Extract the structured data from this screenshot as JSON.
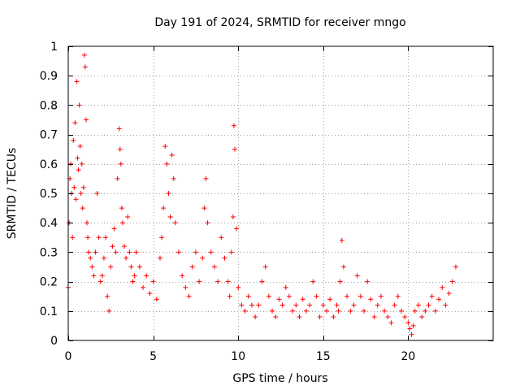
{
  "chart_data": {
    "type": "scatter",
    "title": "Day 191 of 2024, SRMTID for receiver mngo",
    "xlabel": "GPS time / hours",
    "ylabel": "SRMTID / TECUs",
    "xlim": [
      0,
      25
    ],
    "ylim": [
      0,
      1
    ],
    "xticks": [
      0,
      5,
      10,
      15,
      20
    ],
    "yticks": [
      0,
      0.1,
      0.2,
      0.3,
      0.4,
      0.5,
      0.6,
      0.7,
      0.8,
      0.9,
      1
    ],
    "xtick_labels": [
      "0",
      "5",
      "10",
      "15",
      "20"
    ],
    "ytick_labels": [
      "0",
      "0.1",
      "0.2",
      "0.3",
      "0.4",
      "0.5",
      "0.6",
      "0.7",
      "0.8",
      "0.9",
      "1"
    ],
    "grid": true,
    "marker": "+",
    "series": [
      {
        "name": "SRMTID",
        "color": "#ff0000",
        "x": [
          0.0,
          0.05,
          0.1,
          0.15,
          0.2,
          0.25,
          0.3,
          0.35,
          0.4,
          0.45,
          0.5,
          0.55,
          0.6,
          0.65,
          0.7,
          0.75,
          0.8,
          0.85,
          0.9,
          0.95,
          1.0,
          1.05,
          1.1,
          1.15,
          1.2,
          1.3,
          1.4,
          1.5,
          1.6,
          1.7,
          1.8,
          1.9,
          2.0,
          2.1,
          2.2,
          2.3,
          2.4,
          2.5,
          2.6,
          2.7,
          2.8,
          2.9,
          3.0,
          3.05,
          3.1,
          3.15,
          3.2,
          3.3,
          3.4,
          3.5,
          3.6,
          3.7,
          3.8,
          3.9,
          4.0,
          4.2,
          4.4,
          4.6,
          4.8,
          5.0,
          5.2,
          5.4,
          5.5,
          5.6,
          5.7,
          5.8,
          5.9,
          6.0,
          6.1,
          6.2,
          6.3,
          6.5,
          6.7,
          6.9,
          7.1,
          7.3,
          7.5,
          7.7,
          7.9,
          8.0,
          8.1,
          8.2,
          8.4,
          8.6,
          8.8,
          9.0,
          9.2,
          9.4,
          9.5,
          9.6,
          9.7,
          9.75,
          9.8,
          9.9,
          10.0,
          10.2,
          10.4,
          10.6,
          10.8,
          11.0,
          11.2,
          11.4,
          11.6,
          11.8,
          12.0,
          12.2,
          12.4,
          12.6,
          12.8,
          13.0,
          13.2,
          13.4,
          13.6,
          13.8,
          14.0,
          14.2,
          14.4,
          14.6,
          14.8,
          15.0,
          15.2,
          15.4,
          15.6,
          15.8,
          15.9,
          16.0,
          16.1,
          16.2,
          16.4,
          16.6,
          16.8,
          17.0,
          17.2,
          17.4,
          17.6,
          17.8,
          18.0,
          18.2,
          18.4,
          18.6,
          18.8,
          19.0,
          19.2,
          19.4,
          19.6,
          19.8,
          20.0,
          20.1,
          20.2,
          20.3,
          20.4,
          20.6,
          20.8,
          21.0,
          21.2,
          21.4,
          21.6,
          21.8,
          22.0,
          22.2,
          22.4,
          22.6,
          22.8
        ],
        "y": [
          0.18,
          0.4,
          0.55,
          0.6,
          0.5,
          0.35,
          0.68,
          0.52,
          0.74,
          0.48,
          0.88,
          0.62,
          0.58,
          0.8,
          0.66,
          0.5,
          0.6,
          0.45,
          0.52,
          0.97,
          0.93,
          0.75,
          0.4,
          0.35,
          0.3,
          0.28,
          0.25,
          0.22,
          0.3,
          0.5,
          0.35,
          0.2,
          0.22,
          0.28,
          0.35,
          0.15,
          0.1,
          0.25,
          0.32,
          0.38,
          0.3,
          0.55,
          0.72,
          0.65,
          0.6,
          0.45,
          0.4,
          0.32,
          0.28,
          0.42,
          0.3,
          0.25,
          0.2,
          0.22,
          0.3,
          0.25,
          0.18,
          0.22,
          0.16,
          0.2,
          0.14,
          0.28,
          0.35,
          0.45,
          0.66,
          0.6,
          0.5,
          0.42,
          0.63,
          0.55,
          0.4,
          0.3,
          0.22,
          0.18,
          0.15,
          0.25,
          0.3,
          0.2,
          0.28,
          0.45,
          0.55,
          0.4,
          0.3,
          0.25,
          0.2,
          0.35,
          0.28,
          0.2,
          0.15,
          0.3,
          0.42,
          0.73,
          0.65,
          0.38,
          0.18,
          0.12,
          0.1,
          0.15,
          0.12,
          0.08,
          0.12,
          0.2,
          0.25,
          0.15,
          0.1,
          0.08,
          0.14,
          0.12,
          0.18,
          0.15,
          0.1,
          0.12,
          0.08,
          0.14,
          0.1,
          0.12,
          0.2,
          0.15,
          0.08,
          0.12,
          0.1,
          0.14,
          0.08,
          0.12,
          0.1,
          0.2,
          0.34,
          0.25,
          0.15,
          0.1,
          0.12,
          0.22,
          0.15,
          0.1,
          0.2,
          0.14,
          0.08,
          0.12,
          0.15,
          0.1,
          0.08,
          0.06,
          0.12,
          0.15,
          0.1,
          0.08,
          0.06,
          0.04,
          0.02,
          0.05,
          0.1,
          0.12,
          0.08,
          0.1,
          0.12,
          0.15,
          0.1,
          0.14,
          0.18,
          0.12,
          0.16,
          0.2,
          0.25
        ]
      }
    ]
  }
}
